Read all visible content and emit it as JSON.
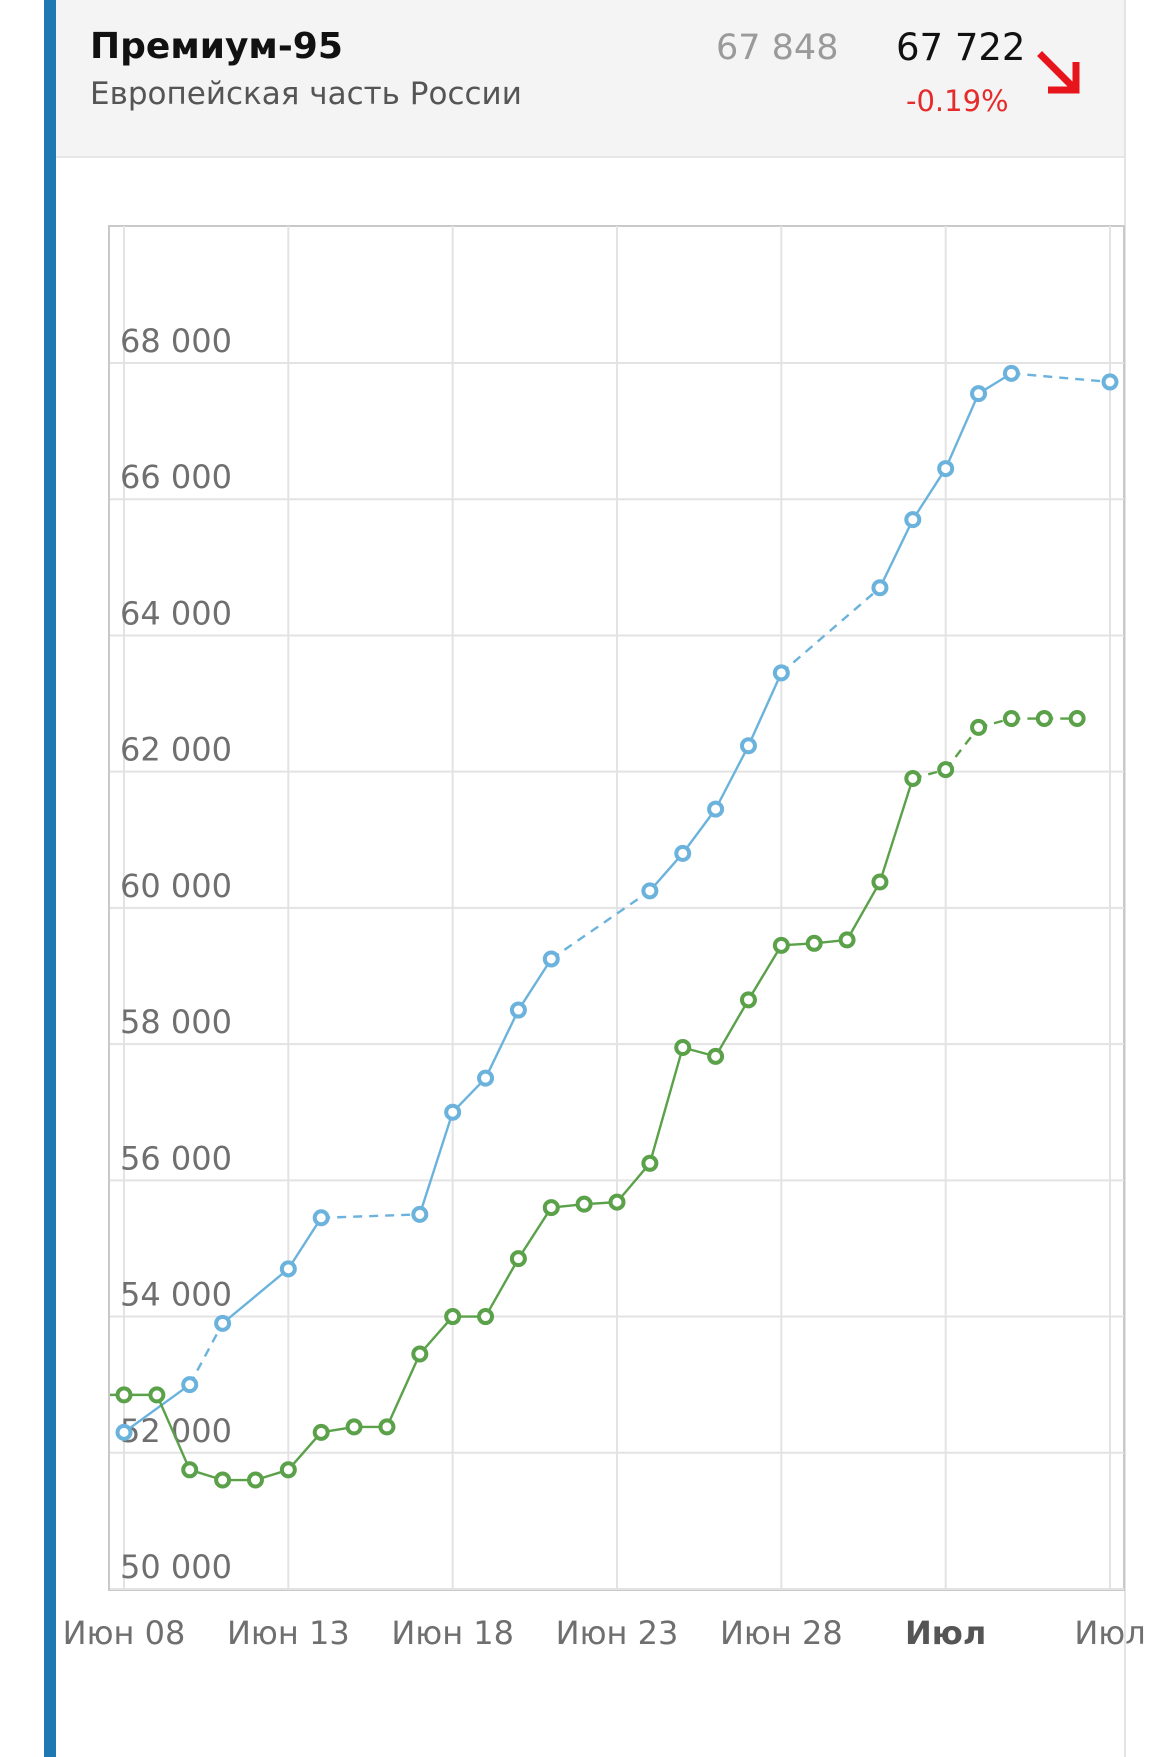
{
  "header": {
    "title": "Премиум-95",
    "subtitle": "Европейская часть России",
    "previous_price": "67 848",
    "current_price": "67 722",
    "change": "-0.19%",
    "trend_icon": "arrow-down-right-icon",
    "colors": {
      "accent": "#1f77b4",
      "change": "#e52b2b",
      "arrow": "#e8141b"
    }
  },
  "chart_data": {
    "type": "line",
    "ylim": [
      50000,
      69500
    ],
    "y_ticks": [
      {
        "value": 50000,
        "label": "50 000"
      },
      {
        "value": 52000,
        "label": "52 000"
      },
      {
        "value": 54000,
        "label": "54 000"
      },
      {
        "value": 56000,
        "label": "56 000"
      },
      {
        "value": 58000,
        "label": "58 000"
      },
      {
        "value": 60000,
        "label": "60 000"
      },
      {
        "value": 62000,
        "label": "62 000"
      },
      {
        "value": 64000,
        "label": "64 000"
      },
      {
        "value": 66000,
        "label": "66 000"
      },
      {
        "value": 68000,
        "label": "68 000"
      }
    ],
    "x_range": [
      "2021-06-08",
      "2021-07-08"
    ],
    "x_ticks": [
      {
        "date": "2021-06-08",
        "label": "Июн 08",
        "bold": false
      },
      {
        "date": "2021-06-13",
        "label": "Июн 13",
        "bold": false
      },
      {
        "date": "2021-06-18",
        "label": "Июн 18",
        "bold": false
      },
      {
        "date": "2021-06-23",
        "label": "Июн 23",
        "bold": false
      },
      {
        "date": "2021-06-28",
        "label": "Июн 28",
        "bold": false
      },
      {
        "date": "2021-07-03",
        "label": "Июл",
        "bold": true
      },
      {
        "date": "2021-07-08",
        "label": "Июл",
        "bold": false
      }
    ],
    "grid": true,
    "series": [
      {
        "color": "#6bb3dc",
        "points": [
          {
            "x": "2021-06-08",
            "y": 52300
          },
          {
            "x": "2021-06-10",
            "y": 53000
          },
          {
            "x": "2021-06-11",
            "y": 53900
          },
          {
            "x": "2021-06-13",
            "y": 54700
          },
          {
            "x": "2021-06-14",
            "y": 55450
          },
          {
            "x": "2021-06-17",
            "y": 55500
          },
          {
            "x": "2021-06-18",
            "y": 57000
          },
          {
            "x": "2021-06-19",
            "y": 57500
          },
          {
            "x": "2021-06-20",
            "y": 58500
          },
          {
            "x": "2021-06-21",
            "y": 59250
          },
          {
            "x": "2021-06-24",
            "y": 60250
          },
          {
            "x": "2021-06-25",
            "y": 60800
          },
          {
            "x": "2021-06-26",
            "y": 61450
          },
          {
            "x": "2021-06-27",
            "y": 62380
          },
          {
            "x": "2021-06-28",
            "y": 63450
          },
          {
            "x": "2021-07-01",
            "y": 64700
          },
          {
            "x": "2021-07-02",
            "y": 65700
          },
          {
            "x": "2021-07-03",
            "y": 66450
          },
          {
            "x": "2021-07-04",
            "y": 67550
          },
          {
            "x": "2021-07-05",
            "y": 67848
          },
          {
            "x": "2021-07-08",
            "y": 67722
          }
        ],
        "gap_segments_after_index": [
          1,
          4,
          9,
          14,
          19
        ]
      },
      {
        "color": "#5aa14a",
        "points": [
          {
            "x": "2021-06-08",
            "y": 52850
          },
          {
            "x": "2021-06-09",
            "y": 52850
          },
          {
            "x": "2021-06-10",
            "y": 51750
          },
          {
            "x": "2021-06-11",
            "y": 51600
          },
          {
            "x": "2021-06-12",
            "y": 51600
          },
          {
            "x": "2021-06-13",
            "y": 51750
          },
          {
            "x": "2021-06-14",
            "y": 52300
          },
          {
            "x": "2021-06-15",
            "y": 52380
          },
          {
            "x": "2021-06-16",
            "y": 52380
          },
          {
            "x": "2021-06-17",
            "y": 53450
          },
          {
            "x": "2021-06-18",
            "y": 54000
          },
          {
            "x": "2021-06-19",
            "y": 54000
          },
          {
            "x": "2021-06-20",
            "y": 54850
          },
          {
            "x": "2021-06-21",
            "y": 55600
          },
          {
            "x": "2021-06-22",
            "y": 55650
          },
          {
            "x": "2021-06-23",
            "y": 55680
          },
          {
            "x": "2021-06-24",
            "y": 56250
          },
          {
            "x": "2021-06-25",
            "y": 57950
          },
          {
            "x": "2021-06-26",
            "y": 57820
          },
          {
            "x": "2021-06-27",
            "y": 58650
          },
          {
            "x": "2021-06-28",
            "y": 59450
          },
          {
            "x": "2021-06-29",
            "y": 59480
          },
          {
            "x": "2021-06-30",
            "y": 59530
          },
          {
            "x": "2021-07-01",
            "y": 60380
          },
          {
            "x": "2021-07-02",
            "y": 61900
          },
          {
            "x": "2021-07-03",
            "y": 62030
          },
          {
            "x": "2021-07-04",
            "y": 62650
          },
          {
            "x": "2021-07-05",
            "y": 62780
          },
          {
            "x": "2021-07-06",
            "y": 62780
          },
          {
            "x": "2021-07-07",
            "y": 62780
          }
        ],
        "gap_segments_after_index": [
          24,
          25,
          26,
          27,
          28
        ]
      }
    ]
  }
}
